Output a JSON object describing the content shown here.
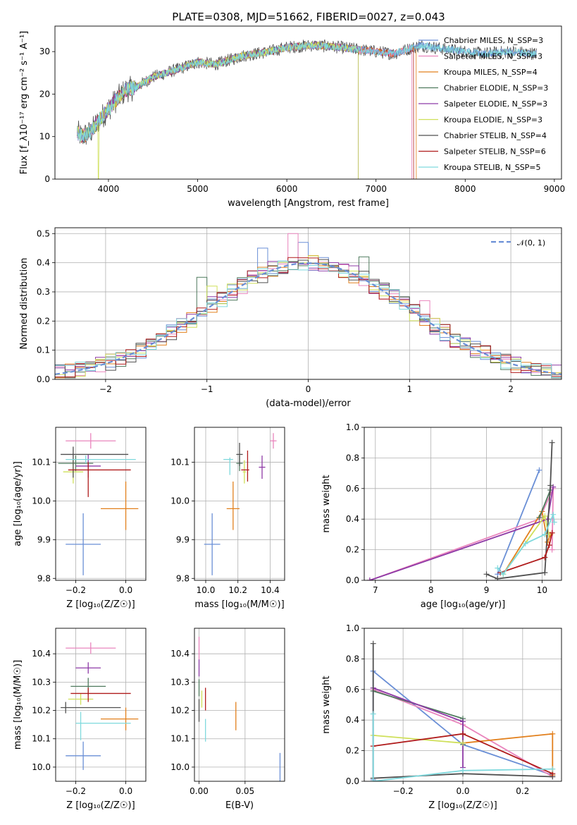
{
  "figure": {
    "title": "PLATE=0308, MJD=51662, FIBERID=0027, z=0.043"
  },
  "colors": {
    "Chabrier MILES": "#6a8fd6",
    "Salpeter MILES": "#e985bd",
    "Kroupa MILES": "#e2801d",
    "Chabrier ELODIE": "#4f7a5e",
    "Salpeter ELODIE": "#8e3aa6",
    "Kroupa ELODIE": "#cfe05a",
    "Chabrier STELIB": "#4f4f4f",
    "Salpeter STELIB": "#b01c1c",
    "Kroupa STELIB": "#7fd9dd"
  },
  "chart_data": [
    {
      "id": "spectrum",
      "type": "line",
      "xlabel": "wavelength [Angstrom, rest frame]",
      "ylabel": "Flux [f_λ10⁻¹⁷ erg cm⁻² s⁻¹ A⁻¹]",
      "xlim": [
        3400,
        9080
      ],
      "ylim": [
        0,
        36
      ],
      "xticks": [
        4000,
        5000,
        6000,
        7000,
        8000,
        9000
      ],
      "yticks": [
        0,
        10,
        20,
        30
      ],
      "grid": false,
      "legend": "upper-right",
      "series": [
        {
          "name": "Chabrier MILES, N_SSP=3",
          "key": "Chabrier MILES",
          "x_end": 8800
        },
        {
          "name": "Salpeter MILES, N_SSP=3",
          "key": "Salpeter MILES",
          "x_end": 7400
        },
        {
          "name": "Kroupa MILES, N_SSP=4",
          "key": "Kroupa MILES",
          "x_end": 7450
        },
        {
          "name": "Chabrier ELODIE, N_SSP=3",
          "key": "Chabrier ELODIE",
          "x_end": 6800
        },
        {
          "name": "Salpeter ELODIE, N_SSP=3",
          "key": "Salpeter ELODIE",
          "x_end": 6800
        },
        {
          "name": "Kroupa ELODIE, N_SSP=3",
          "key": "Kroupa ELODIE",
          "x_end": 6800
        },
        {
          "name": "Chabrier STELIB, N_SSP=4",
          "key": "Chabrier STELIB",
          "x_end": 8800
        },
        {
          "name": "Salpeter STELIB, N_SSP=6",
          "key": "Salpeter STELIB",
          "x_end": 7420
        },
        {
          "name": "Kroupa STELIB, N_SSP=5",
          "key": "Kroupa STELIB",
          "x_end": 8800
        }
      ],
      "continuum": [
        [
          3650,
          11
        ],
        [
          3700,
          10
        ],
        [
          3800,
          11
        ],
        [
          3900,
          14
        ],
        [
          4000,
          16.5
        ],
        [
          4100,
          19
        ],
        [
          4200,
          21
        ],
        [
          4300,
          21.5
        ],
        [
          4500,
          24
        ],
        [
          4800,
          26
        ],
        [
          5000,
          27.5
        ],
        [
          5200,
          27
        ],
        [
          5500,
          29
        ],
        [
          5800,
          30
        ],
        [
          6000,
          31
        ],
        [
          6300,
          31.5
        ],
        [
          6600,
          31
        ],
        [
          7000,
          30
        ],
        [
          7200,
          29.5
        ],
        [
          7500,
          31.5
        ],
        [
          7800,
          30.5
        ],
        [
          8200,
          29.5
        ],
        [
          8500,
          30
        ],
        [
          8800,
          29.5
        ]
      ]
    },
    {
      "id": "residuals",
      "type": "histogram",
      "xlabel": "(data-model)/error",
      "ylabel": "Normed distribution",
      "xlim": [
        -2.5,
        2.5
      ],
      "ylim": [
        0,
        0.52
      ],
      "xticks": [
        -2,
        -1,
        0,
        1,
        2
      ],
      "yticks": [
        0.0,
        0.1,
        0.2,
        0.3,
        0.4,
        0.5
      ],
      "grid": true,
      "legend": "upper-right",
      "bin_width": 0.1,
      "bin_start": -2.5,
      "reference_curve": {
        "name": "𝒩(0, 1)",
        "mean": 0,
        "sigma": 1
      },
      "outlier_bins": [
        {
          "x": -1.05,
          "series": "Chabrier ELODIE",
          "y": 0.35
        },
        {
          "x": -0.95,
          "series": "Kroupa ELODIE",
          "y": 0.32
        },
        {
          "x": -0.45,
          "series": "Chabrier MILES",
          "y": 0.45
        },
        {
          "x": -0.15,
          "series": "Salpeter MILES",
          "y": 0.5
        },
        {
          "x": -0.05,
          "series": "Chabrier MILES",
          "y": 0.47
        },
        {
          "x": 0.55,
          "series": "Chabrier ELODIE",
          "y": 0.42
        },
        {
          "x": 1.15,
          "series": "Salpeter MILES",
          "y": 0.27
        }
      ]
    },
    {
      "id": "age-vs-Z",
      "type": "errorbar",
      "xlabel": "Z [log₁₀(Z/Z☉)]",
      "ylabel": "age  [log₁₀(age/yr)]",
      "xlim": [
        -0.28,
        0.08
      ],
      "ylim": [
        9.795,
        10.19
      ],
      "xticks": [
        -0.2,
        0.0
      ],
      "yticks": [
        9.8,
        9.9,
        10.0,
        10.1
      ],
      "grid": true,
      "points": [
        {
          "key": "Chabrier MILES",
          "x": -0.17,
          "y": 9.888,
          "xerr": [
            0.07,
            0.07
          ],
          "yerr": [
            0.08,
            0.08
          ]
        },
        {
          "key": "Salpeter MILES",
          "x": -0.14,
          "y": 10.155,
          "xerr": [
            0.1,
            0.1
          ],
          "yerr": [
            0.02,
            0.02
          ]
        },
        {
          "key": "Kroupa MILES",
          "x": 0.0,
          "y": 9.98,
          "xerr": [
            0.1,
            0.05
          ],
          "yerr": [
            0.055,
            0.07
          ]
        },
        {
          "key": "Chabrier ELODIE",
          "x": -0.2,
          "y": 10.097,
          "xerr": [
            0.07,
            0.07
          ],
          "yerr": [
            0.02,
            0.02
          ]
        },
        {
          "key": "Salpeter ELODIE",
          "x": -0.15,
          "y": 10.09,
          "xerr": [
            0.05,
            0.05
          ],
          "yerr": [
            0.03,
            0.03
          ]
        },
        {
          "key": "Kroupa ELODIE",
          "x": -0.21,
          "y": 10.075,
          "xerr": [
            0.04,
            0.04
          ],
          "yerr": [
            0.03,
            0.03
          ]
        },
        {
          "key": "Chabrier STELIB",
          "x": -0.21,
          "y": 10.12,
          "xerr": [
            0.05,
            0.22
          ],
          "yerr": [
            0.06,
            0.02
          ]
        },
        {
          "key": "Salpeter STELIB",
          "x": -0.15,
          "y": 10.08,
          "xerr": [
            0.08,
            0.17
          ],
          "yerr": [
            0.07,
            0.02
          ]
        },
        {
          "key": "Kroupa STELIB",
          "x": -0.16,
          "y": 10.107,
          "xerr": [
            0.08,
            0.2
          ],
          "yerr": [
            0.01,
            0.01
          ]
        }
      ]
    },
    {
      "id": "age-vs-mass",
      "type": "errorbar",
      "xlabel": "mass [log₁₀(M/M☉)]",
      "ylabel": "",
      "xlim": [
        9.93,
        10.49
      ],
      "ylim": [
        9.795,
        10.19
      ],
      "xticks": [
        10.0,
        10.2,
        10.4
      ],
      "yticks": [
        9.8,
        9.9,
        10.0,
        10.1
      ],
      "grid": true,
      "points": [
        {
          "key": "Chabrier MILES",
          "x": 10.04,
          "y": 9.888,
          "xerr": [
            0.05,
            0.05
          ],
          "yerr": [
            0.08,
            0.08
          ]
        },
        {
          "key": "Salpeter MILES",
          "x": 10.42,
          "y": 10.155,
          "xerr": [
            0.02,
            0.02
          ],
          "yerr": [
            0.02,
            0.02
          ]
        },
        {
          "key": "Kroupa MILES",
          "x": 10.17,
          "y": 9.98,
          "xerr": [
            0.04,
            0.04
          ],
          "yerr": [
            0.055,
            0.07
          ]
        },
        {
          "key": "Chabrier ELODIE",
          "x": 10.21,
          "y": 10.097,
          "xerr": [
            0.02,
            0.02
          ],
          "yerr": [
            0.02,
            0.02
          ]
        },
        {
          "key": "Salpeter ELODIE",
          "x": 10.35,
          "y": 10.087,
          "xerr": [
            0.02,
            0.02
          ],
          "yerr": [
            0.03,
            0.03
          ]
        },
        {
          "key": "Kroupa ELODIE",
          "x": 10.24,
          "y": 10.075,
          "xerr": [
            0.01,
            0.01
          ],
          "yerr": [
            0.03,
            0.03
          ]
        },
        {
          "key": "Chabrier STELIB",
          "x": 10.21,
          "y": 10.12,
          "xerr": [
            0.02,
            0.02
          ],
          "yerr": [
            0.03,
            0.03
          ]
        },
        {
          "key": "Salpeter STELIB",
          "x": 10.26,
          "y": 10.08,
          "xerr": [
            0.04,
            0.01
          ],
          "yerr": [
            0.03,
            0.05
          ]
        },
        {
          "key": "Kroupa STELIB",
          "x": 10.15,
          "y": 10.107,
          "xerr": [
            0.04,
            0.02
          ],
          "yerr": [
            0.04,
            0.005
          ]
        }
      ]
    },
    {
      "id": "weight-vs-age",
      "type": "line",
      "xlabel": "age  [log₁₀(age/yr)]",
      "ylabel": "mass weight",
      "xlim": [
        6.8,
        10.35
      ],
      "ylim": [
        0,
        1
      ],
      "xticks": [
        7,
        8,
        9,
        10
      ],
      "yticks": [
        0.0,
        0.2,
        0.4,
        0.6,
        0.8,
        1.0
      ],
      "grid": true,
      "series": [
        {
          "key": "Chabrier MILES",
          "x": [
            9.2,
            9.95
          ],
          "y": [
            0.04,
            0.72
          ]
        },
        {
          "key": "Salpeter MILES",
          "x": [
            6.9,
            9.95,
            10.2,
            10.18
          ],
          "y": [
            0.0,
            0.4,
            0.6,
            0.2
          ]
        },
        {
          "key": "Kroupa MILES",
          "x": [
            9.3,
            10.0,
            10.1,
            10.15
          ],
          "y": [
            0.04,
            0.45,
            0.25,
            0.3
          ]
        },
        {
          "key": "Chabrier ELODIE",
          "x": [
            9.95,
            10.15
          ],
          "y": [
            0.41,
            0.59
          ]
        },
        {
          "key": "Salpeter ELODIE",
          "x": [
            6.9,
            10.1,
            10.2
          ],
          "y": [
            0.0,
            0.4,
            0.61
          ]
        },
        {
          "key": "Kroupa ELODIE",
          "x": [
            9.3,
            10.05,
            10.12
          ],
          "y": [
            0.04,
            0.42,
            0.3
          ]
        },
        {
          "key": "Chabrier STELIB",
          "x": [
            9.0,
            9.2,
            10.05,
            10.15,
            10.18
          ],
          "y": [
            0.04,
            0.01,
            0.05,
            0.62,
            0.9
          ]
        },
        {
          "key": "Salpeter STELIB",
          "x": [
            9.25,
            10.05,
            10.13,
            10.18
          ],
          "y": [
            0.05,
            0.15,
            0.23,
            0.31
          ]
        },
        {
          "key": "Kroupa STELIB",
          "x": [
            9.2,
            9.3,
            9.7,
            10.05,
            10.2,
            10.22
          ],
          "y": [
            0.08,
            0.04,
            0.24,
            0.3,
            0.43,
            0.38
          ]
        }
      ]
    },
    {
      "id": "mass-vs-Z",
      "type": "errorbar",
      "xlabel": "Z [log₁₀(Z/Z☉)]",
      "ylabel": "mass [log₁₀(M/M☉)]",
      "xlim": [
        -0.28,
        0.08
      ],
      "ylim": [
        9.95,
        10.49
      ],
      "xticks": [
        -0.2,
        0.0
      ],
      "yticks": [
        10.0,
        10.1,
        10.2,
        10.3,
        10.4
      ],
      "grid": true,
      "points": [
        {
          "key": "Chabrier MILES",
          "x": -0.17,
          "y": 10.04,
          "xerr": [
            0.07,
            0.07
          ],
          "yerr": [
            0.05,
            0.05
          ]
        },
        {
          "key": "Salpeter MILES",
          "x": -0.14,
          "y": 10.42,
          "xerr": [
            0.1,
            0.1
          ],
          "yerr": [
            0.02,
            0.02
          ]
        },
        {
          "key": "Kroupa MILES",
          "x": 0.0,
          "y": 10.17,
          "xerr": [
            0.1,
            0.05
          ],
          "yerr": [
            0.04,
            0.04
          ]
        },
        {
          "key": "Chabrier ELODIE",
          "x": -0.15,
          "y": 10.285,
          "xerr": [
            0.07,
            0.07
          ],
          "yerr": [
            0.03,
            0.03
          ]
        },
        {
          "key": "Salpeter ELODIE",
          "x": -0.15,
          "y": 10.35,
          "xerr": [
            0.05,
            0.05
          ],
          "yerr": [
            0.02,
            0.02
          ]
        },
        {
          "key": "Kroupa ELODIE",
          "x": -0.18,
          "y": 10.24,
          "xerr": [
            0.05,
            0.05
          ],
          "yerr": [
            0.02,
            0.02
          ]
        },
        {
          "key": "Chabrier STELIB",
          "x": -0.24,
          "y": 10.21,
          "xerr": [
            0.02,
            0.22
          ],
          "yerr": [
            0.02,
            0.02
          ]
        },
        {
          "key": "Salpeter STELIB",
          "x": -0.15,
          "y": 10.26,
          "xerr": [
            0.07,
            0.17
          ],
          "yerr": [
            0.03,
            0.02
          ]
        },
        {
          "key": "Kroupa STELIB",
          "x": -0.18,
          "y": 10.155,
          "xerr": [
            0.02,
            0.2
          ],
          "yerr": [
            0.06,
            0.04
          ]
        }
      ]
    },
    {
      "id": "mass-vs-EBV",
      "type": "errorbar",
      "xlabel": "E(B-V)",
      "ylabel": "",
      "xlim": [
        -0.005,
        0.093
      ],
      "ylim": [
        9.95,
        10.49
      ],
      "xticks": [
        0.0,
        0.05
      ],
      "yticks": [
        10.0,
        10.1,
        10.2,
        10.3,
        10.4
      ],
      "grid": true,
      "points": [
        {
          "key": "Chabrier MILES",
          "x": 0.088,
          "y": 10.0,
          "xerr": [
            0,
            0
          ],
          "yerr": [
            0.05,
            0.05
          ]
        },
        {
          "key": "Salpeter MILES",
          "x": 0.0,
          "y": 10.42,
          "xerr": [
            0,
            0
          ],
          "yerr": [
            0.04,
            0.04
          ]
        },
        {
          "key": "Kroupa MILES",
          "x": 0.04,
          "y": 10.17,
          "xerr": [
            0,
            0
          ],
          "yerr": [
            0.04,
            0.06
          ]
        },
        {
          "key": "Chabrier ELODIE",
          "x": 0.0,
          "y": 10.28,
          "xerr": [
            0,
            0
          ],
          "yerr": [
            0.03,
            0.03
          ]
        },
        {
          "key": "Salpeter ELODIE",
          "x": 0.0,
          "y": 10.35,
          "xerr": [
            0,
            0
          ],
          "yerr": [
            0.03,
            0.03
          ]
        },
        {
          "key": "Kroupa ELODIE",
          "x": 0.003,
          "y": 10.24,
          "xerr": [
            0,
            0
          ],
          "yerr": [
            0.03,
            0.03
          ]
        },
        {
          "key": "Chabrier STELIB",
          "x": 0.0,
          "y": 10.2,
          "xerr": [
            0,
            0
          ],
          "yerr": [
            0.04,
            0.04
          ]
        },
        {
          "key": "Salpeter STELIB",
          "x": 0.007,
          "y": 10.24,
          "xerr": [
            0,
            0
          ],
          "yerr": [
            0.04,
            0.04
          ]
        },
        {
          "key": "Kroupa STELIB",
          "x": 0.007,
          "y": 10.13,
          "xerr": [
            0,
            0
          ],
          "yerr": [
            0.04,
            0.04
          ]
        }
      ]
    },
    {
      "id": "weight-vs-Z",
      "type": "line",
      "xlabel": "Z [log₁₀(Z/Z☉)]",
      "ylabel": "mass weight",
      "xlim": [
        -0.33,
        0.33
      ],
      "ylim": [
        0,
        1
      ],
      "xticks": [
        -0.2,
        0.0,
        0.2
      ],
      "yticks": [
        0.0,
        0.2,
        0.4,
        0.6,
        0.8,
        1.0
      ],
      "grid": true,
      "series": [
        {
          "key": "Chabrier MILES",
          "x": [
            -0.3,
            -0.3,
            0.0,
            0.3
          ],
          "y": [
            0.01,
            0.72,
            0.24,
            0.04
          ]
        },
        {
          "key": "Salpeter MILES",
          "x": [
            -0.3,
            0.0,
            0.3
          ],
          "y": [
            0.6,
            0.37,
            0.03
          ]
        },
        {
          "key": "Kroupa MILES",
          "x": [
            0.0,
            0.3,
            0.3
          ],
          "y": [
            0.25,
            0.31,
            0.04
          ]
        },
        {
          "key": "Chabrier ELODIE",
          "x": [
            -0.3,
            0.0,
            0.0
          ],
          "y": [
            0.59,
            0.41,
            0.24
          ]
        },
        {
          "key": "Salpeter ELODIE",
          "x": [
            -0.3,
            0.0,
            0.0
          ],
          "y": [
            0.61,
            0.39,
            0.09
          ]
        },
        {
          "key": "Kroupa ELODIE",
          "x": [
            -0.3,
            0.0
          ],
          "y": [
            0.3,
            0.25
          ]
        },
        {
          "key": "Chabrier STELIB",
          "x": [
            -0.3,
            -0.3,
            0.0,
            0.3
          ],
          "y": [
            0.9,
            0.02,
            0.05,
            0.03
          ]
        },
        {
          "key": "Salpeter STELIB",
          "x": [
            -0.3,
            0.0,
            0.3
          ],
          "y": [
            0.23,
            0.31,
            0.05
          ]
        },
        {
          "key": "Kroupa STELIB",
          "x": [
            -0.3,
            -0.3,
            0.0,
            0.3
          ],
          "y": [
            0.44,
            0.0,
            0.07,
            0.08
          ]
        }
      ]
    }
  ]
}
